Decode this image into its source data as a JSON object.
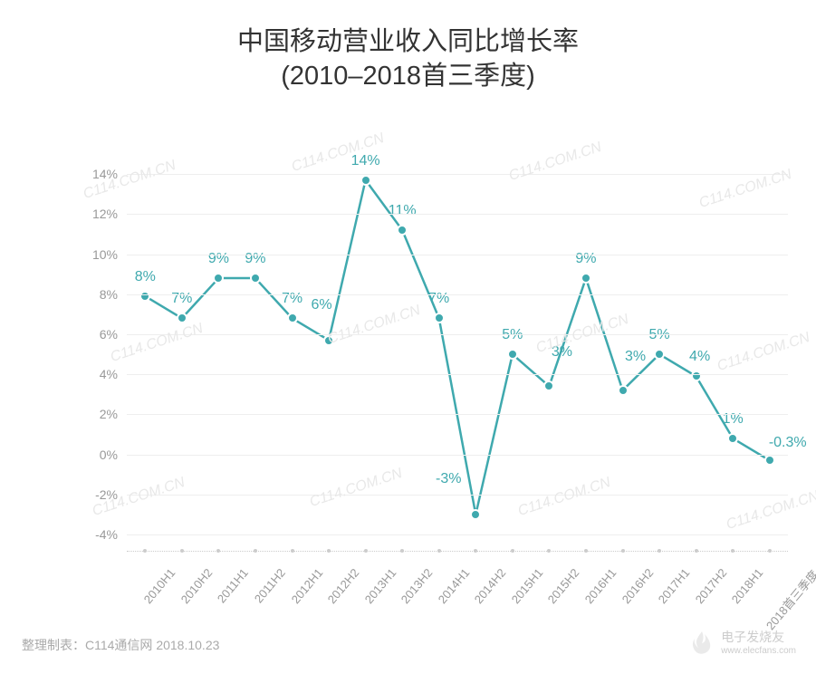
{
  "title": {
    "line1": "中国移动营业收入同比增长率",
    "line2": "(2010–2018首三季度)",
    "fontsize": 29,
    "color": "#333333"
  },
  "chart": {
    "type": "line",
    "background_color": "#ffffff",
    "grid_color": "#eeeeee",
    "axis_label_color": "#999999",
    "line_color": "#3fa9ae",
    "marker_fill": "#3fa9ae",
    "marker_border": "#ffffff",
    "marker_radius": 6,
    "marker_border_width": 2.5,
    "line_width": 2.5,
    "data_label_color": "#3fa9ae",
    "data_label_fontsize": 16,
    "axis_label_fontsize": 14,
    "x_label_fontsize": 13,
    "x_label_rotation_deg": -50,
    "ylim": [
      -4,
      15
    ],
    "yticks": [
      -4,
      -2,
      0,
      2,
      4,
      6,
      8,
      10,
      12,
      14
    ],
    "ytick_labels": [
      "-4%",
      "-2%",
      "0%",
      "2%",
      "4%",
      "6%",
      "8%",
      "10%",
      "12%",
      "14%"
    ],
    "categories": [
      "2010H1",
      "2010H2",
      "2011H1",
      "2011H2",
      "2012H1",
      "2012H2",
      "2013H1",
      "2013H2",
      "2014H1",
      "2014H2",
      "2015H1",
      "2015H2",
      "2016H1",
      "2016H2",
      "2017H1",
      "2017H2",
      "2018H1",
      "2018首三季度"
    ],
    "values": [
      7.9,
      6.8,
      8.8,
      8.8,
      6.8,
      5.7,
      13.7,
      11.2,
      6.8,
      -3.0,
      5.0,
      3.4,
      8.8,
      3.2,
      5.0,
      3.9,
      0.8,
      -0.3
    ],
    "point_labels": [
      "8%",
      "7%",
      "9%",
      "9%",
      "7%",
      "6%",
      "14%",
      "11%",
      "7%",
      "-3%",
      "5%",
      "3%",
      "9%",
      "3%",
      "5%",
      "4%",
      "1%",
      "-0.3%"
    ],
    "label_dy": [
      -12,
      -12,
      -12,
      -12,
      -12,
      -30,
      -12,
      -12,
      -12,
      -30,
      -12,
      -28,
      -12,
      -28,
      -12,
      -12,
      -12,
      -10
    ],
    "label_dx": [
      0,
      0,
      0,
      0,
      0,
      -8,
      0,
      0,
      0,
      -30,
      0,
      14,
      0,
      14,
      0,
      4,
      0,
      20
    ]
  },
  "watermark": {
    "text": "C114.COM.CN",
    "color": "#e8e8e8"
  },
  "source": {
    "text": "整理制表：C114通信网 2018.10.23",
    "color": "#aaaaaa",
    "fontsize": 14
  },
  "logo": {
    "text": "电子发烧友",
    "subtext": "www.elecfans.com",
    "color": "#cccccc"
  }
}
